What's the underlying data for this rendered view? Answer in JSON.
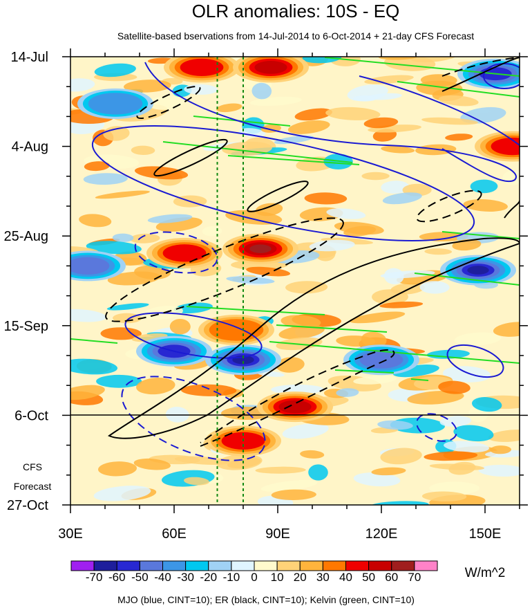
{
  "chart_data": {
    "type": "heatmap",
    "title": "OLR anomalies: 10S - EQ",
    "subtitle": "Satellite-based bservations from 14-Jul-2014 to 6-Oct-2014 + 21-day CFS Forecast",
    "x_range": [
      30,
      160
    ],
    "x_ticks": [
      {
        "value": 30,
        "label": "30E"
      },
      {
        "value": 60,
        "label": "60E"
      },
      {
        "value": 90,
        "label": "90E"
      },
      {
        "value": 120,
        "label": "120E"
      },
      {
        "value": 150,
        "label": "150E"
      }
    ],
    "y_range_days": [
      0,
      105
    ],
    "y_ticks": [
      {
        "day": 0,
        "label": "14-Jul"
      },
      {
        "day": 21,
        "label": "4-Aug"
      },
      {
        "day": 42,
        "label": "25-Aug"
      },
      {
        "day": 63,
        "label": "15-Sep"
      },
      {
        "day": 84,
        "label": "6-Oct"
      },
      {
        "day": 105,
        "label": "27-Oct"
      }
    ],
    "forecast_start_day": 84,
    "forecast_label_line1": "CFS",
    "forecast_label_line2": "Forecast",
    "reference_longitudes": [
      72.5,
      80
    ],
    "colorbar": {
      "levels": [
        -70,
        -60,
        -50,
        -40,
        -30,
        -20,
        -10,
        0,
        10,
        20,
        30,
        40,
        50,
        60,
        70
      ],
      "labels": [
        "-70",
        "-60",
        "-50",
        "-40",
        "-30",
        "-20",
        "-10",
        "0",
        "10",
        "20",
        "30",
        "40",
        "50",
        "60",
        "70"
      ],
      "colors": [
        "#a020f0",
        "#1e1e9c",
        "#2828d2",
        "#5a78dc",
        "#3c96e6",
        "#00c8f0",
        "#a0d2f5",
        "#e0f5ff",
        "#fffacd",
        "#ffd278",
        "#ffb43c",
        "#ff7800",
        "#f00000",
        "#c80000",
        "#a01e1e",
        "#ff82c8"
      ],
      "unit": "W/m^2"
    },
    "footer_note": "MJO (blue, CINT=10); ER (black, CINT=10); Kelvin (green, CINT=10)",
    "features": [
      {
        "name": "warm-anomaly-1",
        "lon": 68,
        "day": 2.5,
        "value": 40
      },
      {
        "name": "warm-anomaly-2",
        "lon": 88,
        "day": 2.5,
        "value": 50
      },
      {
        "name": "warm-anomaly-3",
        "lon": 63,
        "day": 46,
        "value": 40
      },
      {
        "name": "warm-anomaly-4",
        "lon": 85,
        "day": 45,
        "value": 60
      },
      {
        "name": "warm-anomaly-5",
        "lon": 80,
        "day": 90,
        "value": 40
      },
      {
        "name": "warm-anomaly-6",
        "lon": 95,
        "day": 82,
        "value": 50
      },
      {
        "name": "warm-anomaly-7",
        "lon": 158,
        "day": 21,
        "value": 40
      },
      {
        "name": "warm-anomaly-8",
        "lon": 78,
        "day": 64,
        "value": 30
      },
      {
        "name": "cold-anomaly-1",
        "lon": 60,
        "day": 69,
        "value": -50
      },
      {
        "name": "cold-anomaly-2",
        "lon": 80,
        "day": 71,
        "value": -60
      },
      {
        "name": "cold-anomaly-3",
        "lon": 148,
        "day": 50,
        "value": -60
      },
      {
        "name": "cold-anomaly-4",
        "lon": 153,
        "day": 4,
        "value": -50
      },
      {
        "name": "cold-anomaly-5",
        "lon": 43,
        "day": 11,
        "value": -30
      },
      {
        "name": "cold-anomaly-6",
        "lon": 35,
        "day": 49,
        "value": -40
      },
      {
        "name": "cold-anomaly-7",
        "lon": 120,
        "day": 71,
        "value": -40
      }
    ]
  }
}
